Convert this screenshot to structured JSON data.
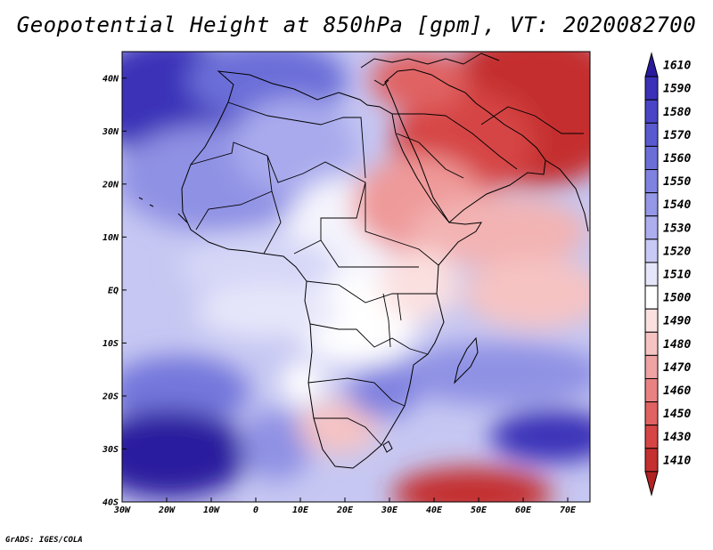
{
  "title": "Geopotential Height at 850hPa [gpm], VT: 2020082700",
  "credit": "GrADS: IGES/COLA",
  "map": {
    "lon_range": [
      -30,
      75
    ],
    "lat_range": [
      -40,
      45
    ],
    "lon_ticks": [
      {
        "value": -30,
        "label": "30W"
      },
      {
        "value": -20,
        "label": "20W"
      },
      {
        "value": -10,
        "label": "10W"
      },
      {
        "value": 0,
        "label": "0"
      },
      {
        "value": 10,
        "label": "10E"
      },
      {
        "value": 20,
        "label": "20E"
      },
      {
        "value": 30,
        "label": "30E"
      },
      {
        "value": 40,
        "label": "40E"
      },
      {
        "value": 50,
        "label": "50E"
      },
      {
        "value": 60,
        "label": "60E"
      },
      {
        "value": 70,
        "label": "70E"
      }
    ],
    "lat_ticks": [
      {
        "value": 40,
        "label": "40N"
      },
      {
        "value": 30,
        "label": "30N"
      },
      {
        "value": 20,
        "label": "20N"
      },
      {
        "value": 10,
        "label": "10N"
      },
      {
        "value": 0,
        "label": "EQ"
      },
      {
        "value": -10,
        "label": "10S"
      },
      {
        "value": -20,
        "label": "20S"
      },
      {
        "value": -30,
        "label": "30S"
      },
      {
        "value": -40,
        "label": "40S"
      }
    ]
  },
  "colorbar": {
    "levels": [
      {
        "label": "1610",
        "color": "#2a1a9e"
      },
      {
        "label": "1590",
        "color": "#3b31b8"
      },
      {
        "label": "1580",
        "color": "#4a45c6"
      },
      {
        "label": "1570",
        "color": "#5a5ad0"
      },
      {
        "label": "1560",
        "color": "#6c6ed8"
      },
      {
        "label": "1550",
        "color": "#8082e0"
      },
      {
        "label": "1540",
        "color": "#9597e7"
      },
      {
        "label": "1530",
        "color": "#adaeee"
      },
      {
        "label": "1520",
        "color": "#c8c9f4"
      },
      {
        "label": "1510",
        "color": "#e6e6fa"
      },
      {
        "label": "1500",
        "color": "#ffffff"
      },
      {
        "label": "1490",
        "color": "#fbe0e0"
      },
      {
        "label": "1480",
        "color": "#f6c3c3"
      },
      {
        "label": "1470",
        "color": "#efa3a3"
      },
      {
        "label": "1460",
        "color": "#e88282"
      },
      {
        "label": "1450",
        "color": "#e06262"
      },
      {
        "label": "1430",
        "color": "#d64545"
      },
      {
        "label": "1410",
        "color": "#c42f2f"
      }
    ],
    "bottom_color": "#b22222"
  }
}
